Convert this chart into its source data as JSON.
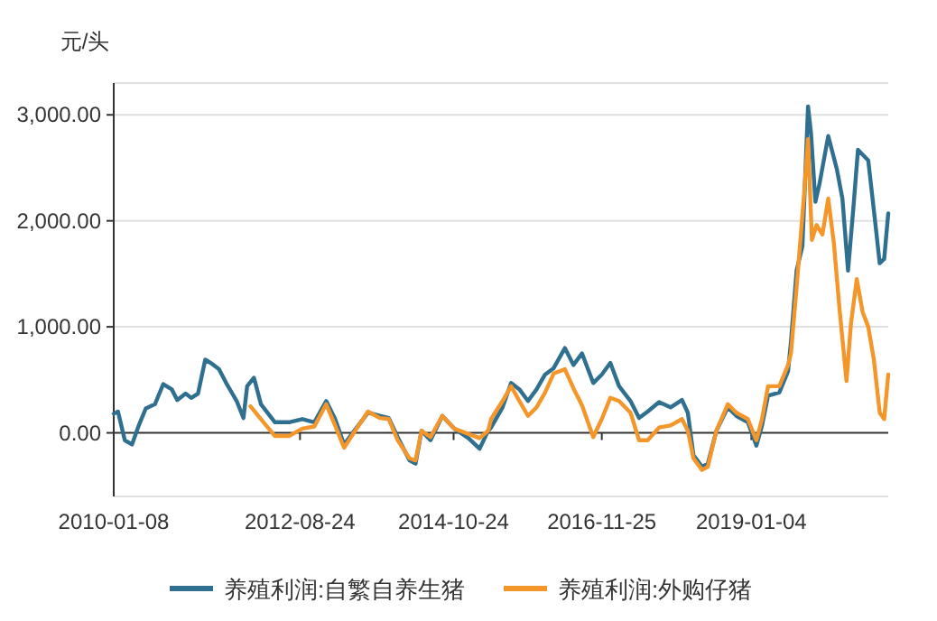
{
  "chart_data": {
    "type": "line",
    "ylabel": "元/头",
    "xlim": [
      "2010-01-08",
      "2020-12-09"
    ],
    "xticks": [
      {
        "value": "2010-01-08",
        "label": "2010-01-08"
      },
      {
        "value": "2012-08-24",
        "label": "2012-08-24"
      },
      {
        "value": "2014-10-24",
        "label": "2014-10-24"
      },
      {
        "value": "2016-11-25",
        "label": "2016-11-25"
      },
      {
        "value": "2019-01-04",
        "label": "2019-01-04"
      }
    ],
    "ylim": [
      -600,
      3300
    ],
    "yticks": [
      {
        "value": 0,
        "label": "0.00"
      },
      {
        "value": 1000,
        "label": "1,000.00"
      },
      {
        "value": 2000,
        "label": "2,000.00"
      },
      {
        "value": 3000,
        "label": "3,000.00"
      }
    ],
    "grid": "y",
    "legend": "bottom",
    "marker": "none",
    "line_style": "solid",
    "series": [
      {
        "name": "养殖利润:自繁自养生猪",
        "color": "#2f6f8f",
        "x": [
          "2010-01-08",
          "2010-01-30",
          "2010-03-06",
          "2010-04-12",
          "2010-05-17",
          "2010-06-22",
          "2010-08-08",
          "2010-09-20",
          "2010-11-03",
          "2010-12-01",
          "2011-01-13",
          "2011-02-11",
          "2011-03-18",
          "2011-04-24",
          "2011-05-30",
          "2011-07-04",
          "2011-08-10",
          "2011-10-03",
          "2011-11-07",
          "2011-11-26",
          "2011-12-31",
          "2012-02-05",
          "2012-04-17",
          "2012-06-28",
          "2012-09-05",
          "2012-11-06",
          "2013-01-06",
          "2013-02-21",
          "2013-04-08",
          "2013-06-08",
          "2013-08-09",
          "2013-10-09",
          "2013-11-24",
          "2014-01-09",
          "2014-03-11",
          "2014-04-11",
          "2014-05-12",
          "2014-06-27",
          "2014-08-27",
          "2014-10-27",
          "2015-01-08",
          "2015-03-07",
          "2015-04-20",
          "2015-05-05",
          "2015-07-03",
          "2015-08-16",
          "2015-09-28",
          "2015-11-11",
          "2015-12-25",
          "2016-02-07",
          "2016-03-22",
          "2016-05-19",
          "2016-07-02",
          "2016-08-15",
          "2016-10-12",
          "2016-11-25",
          "2017-01-08",
          "2017-02-22",
          "2017-04-22",
          "2017-06-05",
          "2017-07-19",
          "2017-09-16",
          "2017-11-14",
          "2018-01-12",
          "2018-02-11",
          "2018-03-12",
          "2018-04-25",
          "2018-05-25",
          "2018-07-08",
          "2018-09-05",
          "2018-10-19",
          "2018-12-17",
          "2019-01-30",
          "2019-02-28",
          "2019-03-31",
          "2019-05-28",
          "2019-07-12",
          "2019-07-27",
          "2019-08-25",
          "2019-09-24",
          "2019-10-23",
          "2019-11-07",
          "2019-11-30",
          "2019-12-21",
          "2020-02-04",
          "2020-03-19",
          "2020-04-17",
          "2020-05-16",
          "2020-06-15",
          "2020-07-06",
          "2020-08-28",
          "2020-09-26",
          "2020-10-26",
          "2020-11-18",
          "2020-12-09"
        ],
        "values": [
          180,
          200,
          -70,
          -110,
          70,
          230,
          270,
          460,
          410,
          310,
          370,
          330,
          370,
          690,
          650,
          600,
          470,
          300,
          140,
          440,
          520,
          270,
          100,
          100,
          130,
          100,
          300,
          130,
          -110,
          40,
          190,
          160,
          140,
          -40,
          -260,
          -290,
          20,
          -70,
          160,
          40,
          -50,
          -150,
          20,
          50,
          240,
          470,
          410,
          300,
          410,
          550,
          610,
          800,
          640,
          750,
          470,
          550,
          660,
          440,
          300,
          140,
          200,
          290,
          240,
          310,
          190,
          -210,
          -320,
          -290,
          20,
          240,
          160,
          100,
          -120,
          70,
          350,
          380,
          580,
          860,
          1530,
          1760,
          3080,
          2830,
          2180,
          2350,
          2800,
          2490,
          2210,
          1530,
          2180,
          2670,
          2570,
          2100,
          1600,
          1640,
          2070
        ]
      },
      {
        "name": "养殖利润:外购仔猪",
        "color": "#f5962a",
        "x": [
          "2011-12-13",
          "2012-02-05",
          "2012-04-17",
          "2012-06-28",
          "2012-09-05",
          "2012-11-06",
          "2013-01-06",
          "2013-02-21",
          "2013-04-08",
          "2013-06-08",
          "2013-08-09",
          "2013-10-09",
          "2013-11-24",
          "2014-01-09",
          "2014-03-11",
          "2014-04-11",
          "2014-05-12",
          "2014-06-27",
          "2014-08-27",
          "2014-10-27",
          "2015-01-08",
          "2015-03-07",
          "2015-04-20",
          "2015-05-05",
          "2015-07-03",
          "2015-08-16",
          "2015-09-28",
          "2015-11-11",
          "2015-12-25",
          "2016-02-07",
          "2016-03-22",
          "2016-05-19",
          "2016-07-02",
          "2016-08-15",
          "2016-10-12",
          "2016-11-25",
          "2017-01-08",
          "2017-02-22",
          "2017-04-22",
          "2017-06-05",
          "2017-07-19",
          "2017-09-16",
          "2017-11-14",
          "2018-01-12",
          "2018-02-11",
          "2018-03-12",
          "2018-04-25",
          "2018-05-25",
          "2018-07-08",
          "2018-09-05",
          "2018-10-19",
          "2018-12-17",
          "2019-01-30",
          "2019-02-28",
          "2019-03-31",
          "2019-05-28",
          "2019-07-12",
          "2019-07-27",
          "2019-08-25",
          "2019-10-03",
          "2019-10-23",
          "2019-11-12",
          "2019-12-06",
          "2020-01-05",
          "2020-02-04",
          "2020-03-04",
          "2020-04-02",
          "2020-05-08",
          "2020-05-31",
          "2020-06-30",
          "2020-07-30",
          "2020-08-28",
          "2020-09-26",
          "2020-10-26",
          "2020-11-18",
          "2020-12-09"
        ],
        "values": [
          250,
          130,
          -30,
          -30,
          40,
          60,
          270,
          70,
          -140,
          30,
          200,
          140,
          130,
          -70,
          -240,
          -260,
          20,
          -40,
          160,
          40,
          -10,
          -50,
          20,
          130,
          300,
          440,
          300,
          160,
          240,
          380,
          560,
          600,
          420,
          260,
          -40,
          130,
          330,
          300,
          190,
          -70,
          -70,
          50,
          70,
          130,
          20,
          -240,
          -350,
          -320,
          20,
          270,
          190,
          130,
          -70,
          130,
          440,
          440,
          640,
          750,
          1370,
          2260,
          2770,
          1820,
          1960,
          1870,
          2210,
          1790,
          1170,
          490,
          1030,
          1450,
          1140,
          1000,
          690,
          190,
          130,
          550
        ]
      }
    ]
  }
}
